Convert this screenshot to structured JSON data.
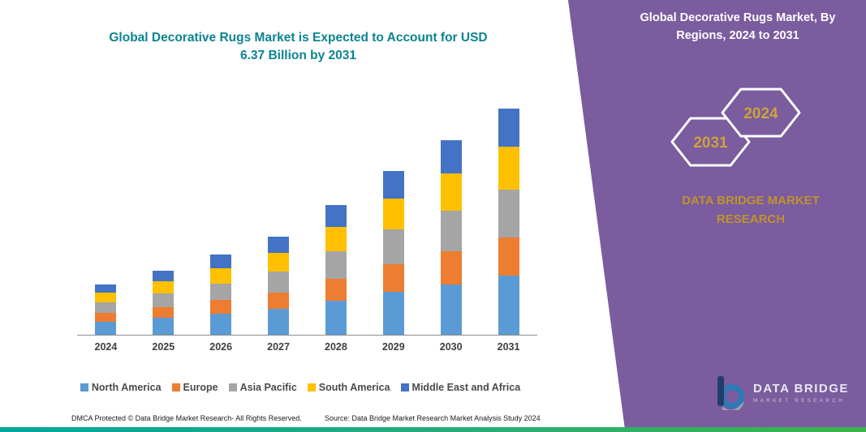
{
  "chart": {
    "title_line1": "Global Decorative Rugs Market is Expected to Account for USD",
    "title_line2": "6.37 Billion by 2031",
    "title_color": "#0B8490"
  },
  "chart_data": {
    "type": "bar",
    "stacked": true,
    "title": "Global Decorative Rugs Market is Expected to Account for USD 6.37 Billion by 2031",
    "xlabel": "",
    "ylabel": "",
    "unit": "USD Billion",
    "ylim": [
      0,
      6.5
    ],
    "grid": false,
    "legend_position": "bottom",
    "categories": [
      "2024",
      "2025",
      "2026",
      "2027",
      "2028",
      "2029",
      "2030",
      "2031"
    ],
    "totals": [
      1.41,
      1.8,
      2.26,
      2.77,
      3.65,
      4.62,
      5.47,
      6.37
    ],
    "series": [
      {
        "name": "North America",
        "color": "#5B9BD5",
        "values": [
          0.37,
          0.47,
          0.59,
          0.72,
          0.95,
          1.2,
          1.42,
          1.66
        ]
      },
      {
        "name": "Europe",
        "color": "#ED7D31",
        "values": [
          0.24,
          0.31,
          0.38,
          0.47,
          0.62,
          0.79,
          0.93,
          1.08
        ]
      },
      {
        "name": "Asia Pacific",
        "color": "#A5A5A5",
        "values": [
          0.3,
          0.38,
          0.47,
          0.58,
          0.77,
          0.97,
          1.15,
          1.34
        ]
      },
      {
        "name": "South America",
        "color": "#FFC000",
        "values": [
          0.27,
          0.34,
          0.43,
          0.53,
          0.69,
          0.88,
          1.04,
          1.21
        ]
      },
      {
        "name": "Middle East and Africa",
        "color": "#4472C4",
        "values": [
          0.23,
          0.3,
          0.39,
          0.47,
          0.62,
          0.78,
          0.93,
          1.08
        ]
      }
    ]
  },
  "panel": {
    "title_line1": "Global Decorative Rugs Market, By",
    "title_line2": "Regions, 2024 to 2031",
    "hex_year_left": "2031",
    "hex_year_right": "2024",
    "brand_line1": "DATA BRIDGE MARKET",
    "brand_line2": "RESEARCH",
    "logo_title": "DATA BRIDGE",
    "logo_subtitle": "MARKET RESEARCH",
    "colors": {
      "panel_purple": "#7A5C9F",
      "accent_gold": "#CDA23A",
      "brand_gold": "#C0922C"
    }
  },
  "footer": {
    "dmca": "DMCA Protected © Data Bridge Market Research-  All Rights Reserved.",
    "source": "Source: Data Bridge Market Research  Market Analysis Study 2024"
  }
}
